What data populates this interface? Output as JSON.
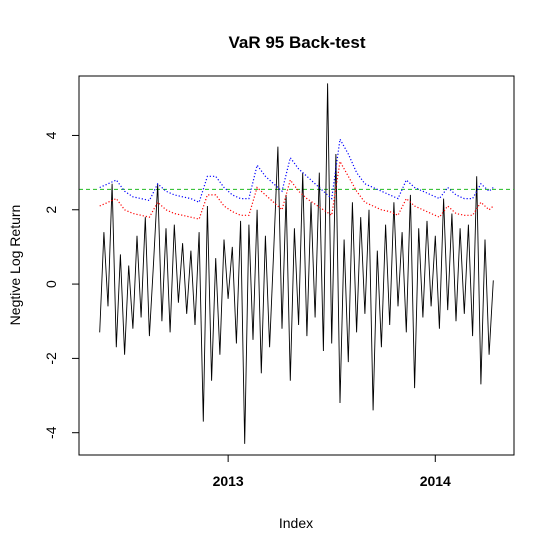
{
  "chart_data": {
    "type": "line",
    "title": "VaR 95 Back-test",
    "xlabel": "Index",
    "ylabel": "Negtive Log Return",
    "xlim": [
      2012.28,
      2014.38
    ],
    "ylim": [
      -4.6,
      5.6
    ],
    "xticks": [
      {
        "value": 2013,
        "label": "2013"
      },
      {
        "value": 2014,
        "label": "2014"
      }
    ],
    "yticks": [
      {
        "value": -4,
        "label": "-4"
      },
      {
        "value": -2,
        "label": "-2"
      },
      {
        "value": 0,
        "label": "0"
      },
      {
        "value": 2,
        "label": "2"
      },
      {
        "value": 4,
        "label": "4"
      }
    ],
    "grid": false,
    "legend": "none",
    "reference_lines": [
      {
        "value": 2.55,
        "color": "#22bb22",
        "style": "dashed"
      }
    ],
    "series": [
      {
        "color": "#000000",
        "style": "solid",
        "x": [
          2012.38,
          2012.4,
          2012.42,
          2012.44,
          2012.46,
          2012.48,
          2012.5,
          2012.52,
          2012.54,
          2012.56,
          2012.58,
          2012.6,
          2012.62,
          2012.64,
          2012.66,
          2012.68,
          2012.7,
          2012.72,
          2012.74,
          2012.76,
          2012.78,
          2012.8,
          2012.82,
          2012.84,
          2012.86,
          2012.88,
          2012.9,
          2012.92,
          2012.94,
          2012.96,
          2012.98,
          2013.0,
          2013.02,
          2013.04,
          2013.06,
          2013.08,
          2013.1,
          2013.12,
          2013.14,
          2013.16,
          2013.18,
          2013.2,
          2013.22,
          2013.24,
          2013.26,
          2013.28,
          2013.3,
          2013.32,
          2013.34,
          2013.36,
          2013.38,
          2013.4,
          2013.42,
          2013.44,
          2013.46,
          2013.48,
          2013.5,
          2013.52,
          2013.54,
          2013.56,
          2013.58,
          2013.6,
          2013.62,
          2013.64,
          2013.66,
          2013.68,
          2013.7,
          2013.72,
          2013.74,
          2013.76,
          2013.78,
          2013.8,
          2013.82,
          2013.84,
          2013.86,
          2013.88,
          2013.9,
          2013.92,
          2013.94,
          2013.96,
          2013.98,
          2014.0,
          2014.02,
          2014.04,
          2014.06,
          2014.08,
          2014.1,
          2014.12,
          2014.14,
          2014.16,
          2014.18,
          2014.2,
          2014.22,
          2014.24,
          2014.26,
          2014.28
        ],
        "values": [
          -1.3,
          1.4,
          -0.6,
          2.7,
          -1.7,
          0.8,
          -1.9,
          0.5,
          -1.2,
          1.3,
          -0.9,
          1.8,
          -1.4,
          0.6,
          2.7,
          -1.0,
          1.5,
          -1.3,
          1.6,
          -0.5,
          1.1,
          -0.8,
          0.9,
          -1.1,
          1.4,
          -3.7,
          2.1,
          -2.6,
          0.7,
          -1.9,
          1.2,
          -0.4,
          1.0,
          -1.6,
          1.7,
          -4.3,
          1.6,
          -1.5,
          2.0,
          -2.4,
          1.3,
          -1.7,
          0.9,
          3.7,
          -1.2,
          2.4,
          -2.6,
          1.5,
          -1.1,
          3.0,
          -1.4,
          2.2,
          -0.9,
          3.0,
          -1.8,
          5.4,
          -1.6,
          3.5,
          -3.2,
          1.2,
          -2.1,
          2.2,
          -1.3,
          1.8,
          -0.8,
          2.0,
          -3.4,
          0.9,
          -1.7,
          1.6,
          -1.1,
          2.2,
          -0.6,
          1.4,
          -1.3,
          2.4,
          -2.8,
          1.5,
          -0.9,
          1.7,
          -0.6,
          1.3,
          -1.2,
          2.3,
          -0.7,
          1.9,
          -1.0,
          1.5,
          -0.8,
          1.6,
          -1.4,
          2.9,
          -2.7,
          1.2,
          -1.9,
          0.1
        ]
      },
      {
        "color": "#0000ff",
        "style": "dotted",
        "x": [
          2012.38,
          2012.42,
          2012.46,
          2012.5,
          2012.54,
          2012.58,
          2012.62,
          2012.66,
          2012.7,
          2012.74,
          2012.78,
          2012.82,
          2012.86,
          2012.9,
          2012.94,
          2012.98,
          2013.02,
          2013.06,
          2013.1,
          2013.14,
          2013.18,
          2013.22,
          2013.26,
          2013.3,
          2013.34,
          2013.38,
          2013.42,
          2013.46,
          2013.5,
          2013.54,
          2013.58,
          2013.62,
          2013.66,
          2013.7,
          2013.74,
          2013.78,
          2013.82,
          2013.86,
          2013.9,
          2013.94,
          2013.98,
          2014.02,
          2014.06,
          2014.1,
          2014.14,
          2014.18,
          2014.22,
          2014.26,
          2014.28
        ],
        "values": [
          2.6,
          2.7,
          2.8,
          2.5,
          2.35,
          2.3,
          2.25,
          2.7,
          2.5,
          2.4,
          2.35,
          2.3,
          2.2,
          2.9,
          2.9,
          2.6,
          2.4,
          2.3,
          2.3,
          3.2,
          2.9,
          2.7,
          2.5,
          3.4,
          3.1,
          2.9,
          2.7,
          2.5,
          2.3,
          3.9,
          3.5,
          3.0,
          2.7,
          2.6,
          2.5,
          2.4,
          2.3,
          2.8,
          2.6,
          2.5,
          2.4,
          2.3,
          2.6,
          2.4,
          2.3,
          2.3,
          2.7,
          2.5,
          2.6
        ]
      },
      {
        "color": "#ff0000",
        "style": "dotted",
        "x": [
          2012.38,
          2012.42,
          2012.46,
          2012.5,
          2012.54,
          2012.58,
          2012.62,
          2012.66,
          2012.7,
          2012.74,
          2012.78,
          2012.82,
          2012.86,
          2012.9,
          2012.94,
          2012.98,
          2013.02,
          2013.06,
          2013.1,
          2013.14,
          2013.18,
          2013.22,
          2013.26,
          2013.3,
          2013.34,
          2013.38,
          2013.42,
          2013.46,
          2013.5,
          2013.54,
          2013.58,
          2013.62,
          2013.66,
          2013.7,
          2013.74,
          2013.78,
          2013.82,
          2013.86,
          2013.9,
          2013.94,
          2013.98,
          2014.02,
          2014.06,
          2014.1,
          2014.14,
          2014.18,
          2014.22,
          2014.26,
          2014.28
        ],
        "values": [
          2.1,
          2.2,
          2.3,
          2.0,
          1.9,
          1.85,
          1.8,
          2.2,
          2.0,
          1.9,
          1.85,
          1.8,
          1.75,
          2.4,
          2.4,
          2.1,
          1.95,
          1.85,
          1.85,
          2.6,
          2.4,
          2.2,
          2.0,
          2.8,
          2.5,
          2.3,
          2.15,
          2.0,
          1.85,
          3.3,
          2.9,
          2.5,
          2.2,
          2.1,
          2.0,
          1.95,
          1.85,
          2.3,
          2.1,
          2.0,
          1.9,
          1.8,
          2.1,
          1.9,
          1.85,
          1.85,
          2.2,
          2.0,
          2.1
        ]
      }
    ]
  }
}
